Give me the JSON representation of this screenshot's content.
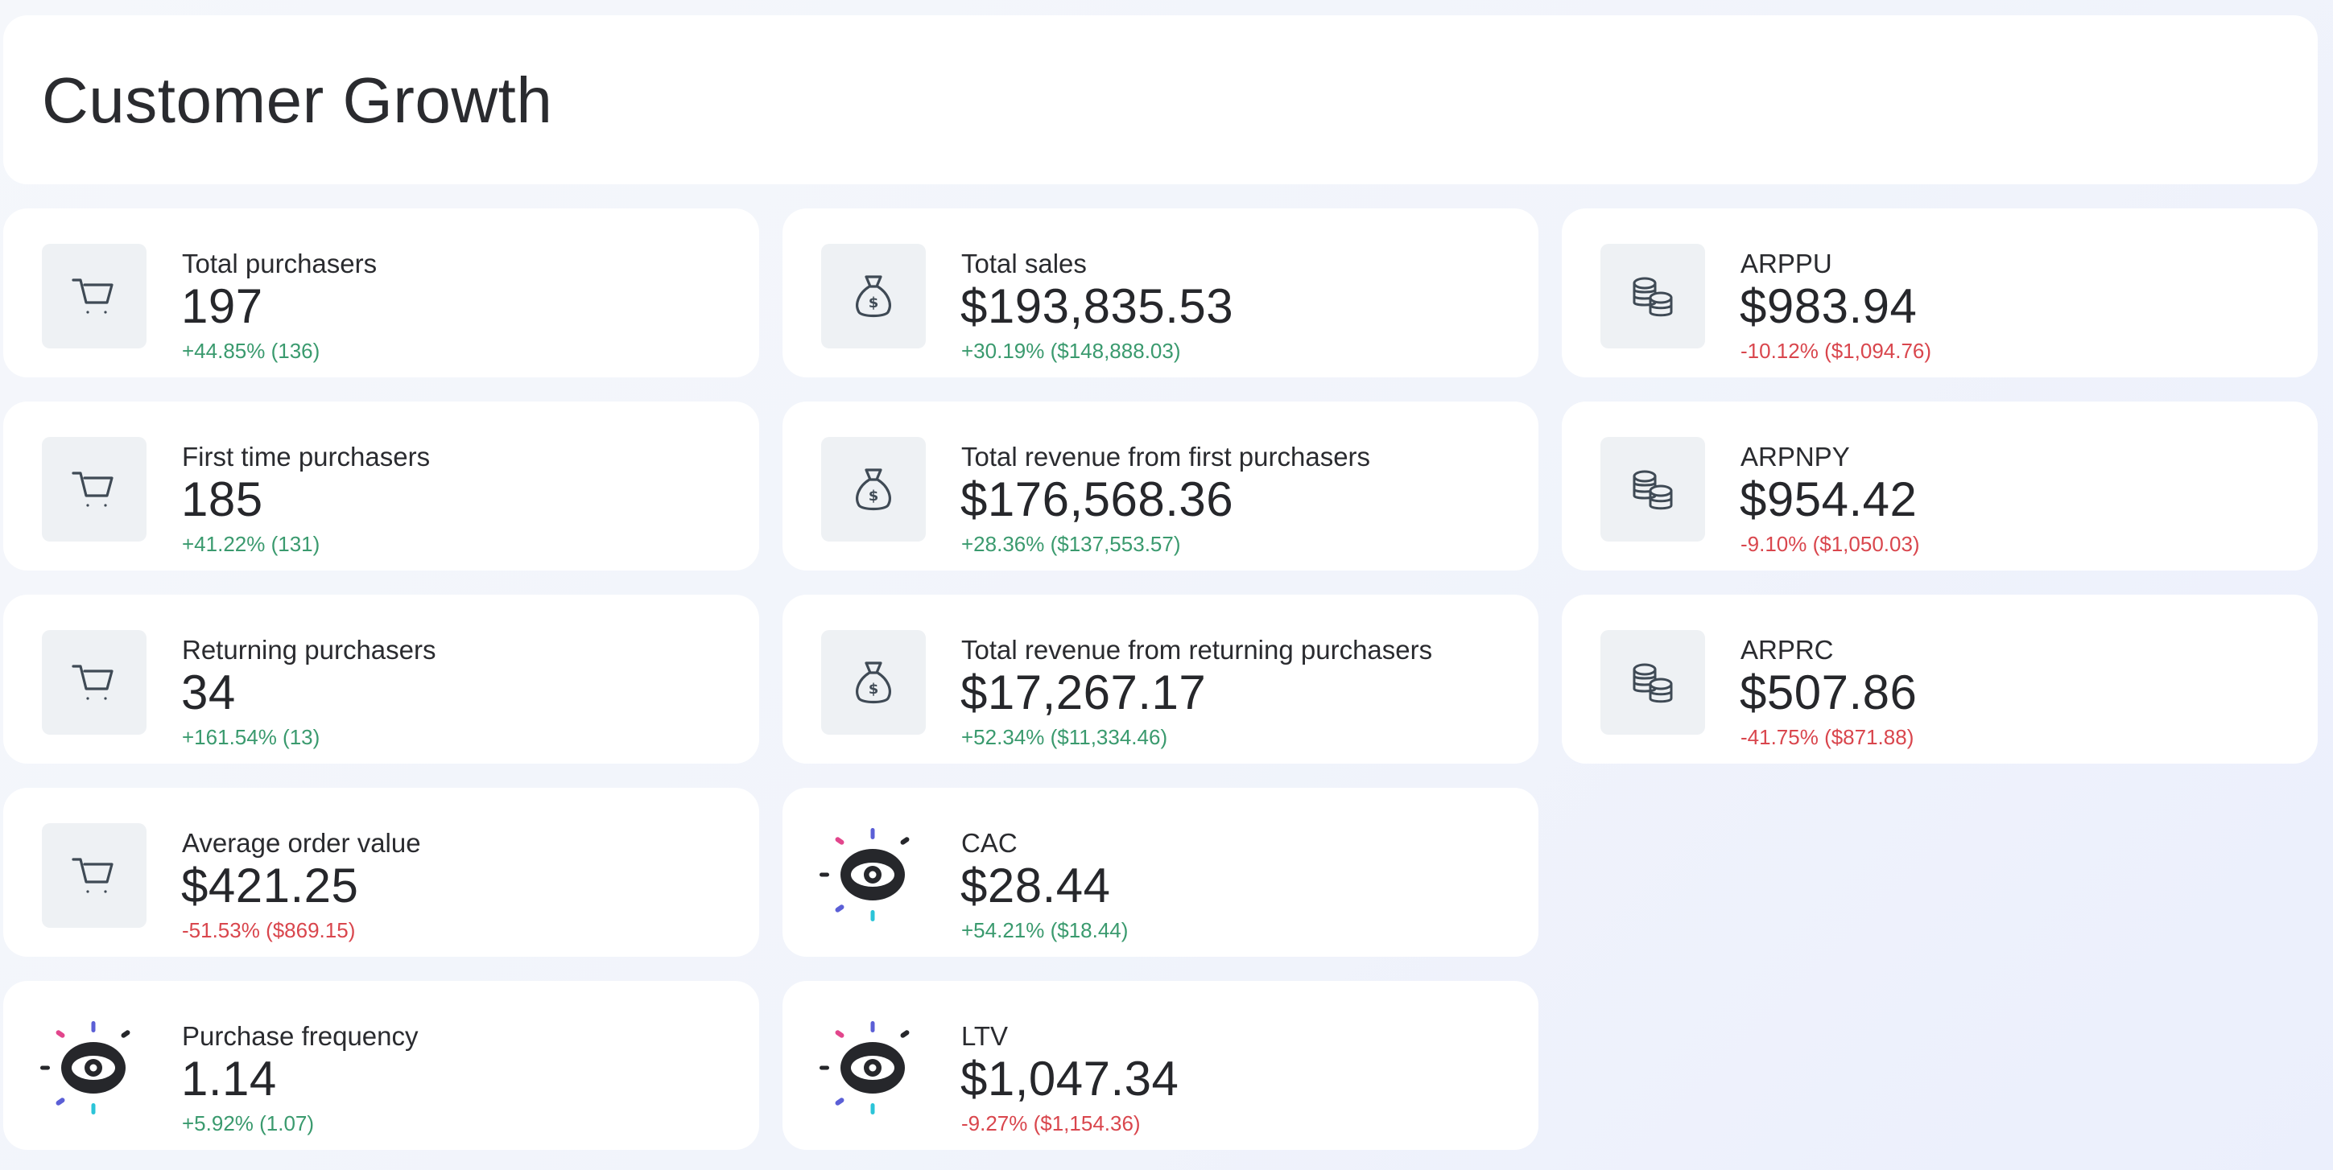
{
  "page": {
    "title": "Customer Growth"
  },
  "colors": {
    "positive": "#3a9a6e",
    "negative": "#d9464d",
    "icon_box_bg": "#eef1f4",
    "icon_stroke": "#3f4a55"
  },
  "columns": {
    "purchasers": [
      {
        "id": "total-purchasers",
        "icon": "cart-icon",
        "label": "Total purchasers",
        "value": "197",
        "delta": "+44.85% (136)",
        "trend": "positive"
      },
      {
        "id": "first-time-purchasers",
        "icon": "cart-icon",
        "label": "First time purchasers",
        "value": "185",
        "delta": "+41.22% (131)",
        "trend": "positive"
      },
      {
        "id": "returning-purchasers",
        "icon": "cart-icon",
        "label": "Returning purchasers",
        "value": "34",
        "delta": "+161.54% (13)",
        "trend": "positive"
      },
      {
        "id": "average-order-value",
        "icon": "cart-icon",
        "label": "Average order value",
        "value": "$421.25",
        "delta": "-51.53% ($869.15)",
        "trend": "negative"
      },
      {
        "id": "purchase-frequency",
        "icon": "eye-burst-icon",
        "label": "Purchase frequency",
        "value": "1.14",
        "delta": "+5.92% (1.07)",
        "trend": "positive"
      }
    ],
    "revenue": [
      {
        "id": "total-sales",
        "icon": "money-bag-icon",
        "label": "Total sales",
        "value": "$193,835.53",
        "delta": "+30.19% ($148,888.03)",
        "trend": "positive"
      },
      {
        "id": "revenue-first-purchasers",
        "icon": "money-bag-icon",
        "label": "Total revenue from first purchasers",
        "value": "$176,568.36",
        "delta": "+28.36% ($137,553.57)",
        "trend": "positive"
      },
      {
        "id": "revenue-returning-purchasers",
        "icon": "money-bag-icon",
        "label": "Total revenue from returning purchasers",
        "value": "$17,267.17",
        "delta": "+52.34% ($11,334.46)",
        "trend": "positive"
      },
      {
        "id": "cac",
        "icon": "eye-burst-icon",
        "label": "CAC",
        "value": "$28.44",
        "delta": "+54.21% ($18.44)",
        "trend": "positive"
      },
      {
        "id": "ltv",
        "icon": "eye-burst-icon",
        "label": "LTV",
        "value": "$1,047.34",
        "delta": "-9.27% ($1,154.36)",
        "trend": "negative"
      }
    ],
    "averages": [
      {
        "id": "arppu",
        "icon": "coins-icon",
        "label": "ARPPU",
        "value": "$983.94",
        "delta": "-10.12% ($1,094.76)",
        "trend": "negative"
      },
      {
        "id": "arpnpy",
        "icon": "coins-icon",
        "label": "ARPNPY",
        "value": "$954.42",
        "delta": "-9.10% ($1,050.03)",
        "trend": "negative"
      },
      {
        "id": "arprc",
        "icon": "coins-icon",
        "label": "ARPRC",
        "value": "$507.86",
        "delta": "-41.75% ($871.88)",
        "trend": "negative"
      }
    ]
  }
}
